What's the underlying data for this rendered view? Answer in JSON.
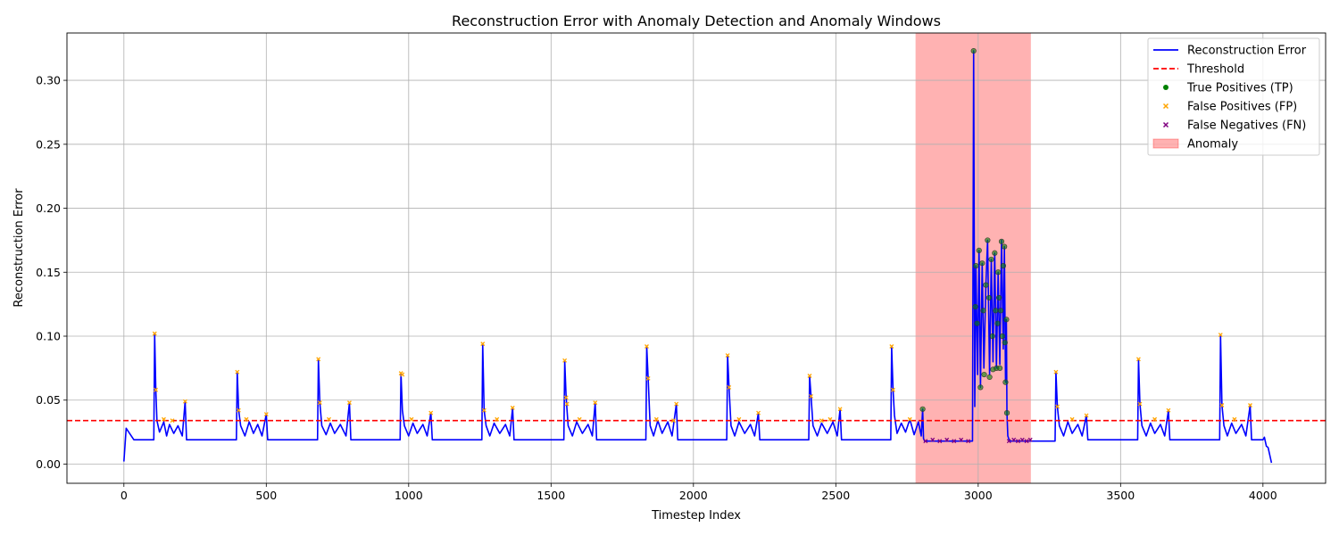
{
  "chart_data": {
    "type": "line",
    "title": "Reconstruction Error with Anomaly Detection and Anomaly Windows",
    "xlabel": "Timestep Index",
    "ylabel": "Reconstruction Error",
    "xlim": [
      -200,
      4220
    ],
    "ylim": [
      -0.015,
      0.337
    ],
    "x_ticks": [
      0,
      500,
      1000,
      1500,
      2000,
      2500,
      3000,
      3500,
      4000
    ],
    "y_ticks": [
      0.0,
      0.05,
      0.1,
      0.15,
      0.2,
      0.25,
      0.3
    ],
    "y_tick_labels": [
      "0.00",
      "0.05",
      "0.10",
      "0.15",
      "0.20",
      "0.25",
      "0.30"
    ],
    "grid": true,
    "legend_position": "upper-right",
    "threshold": 0.034,
    "anomaly_window": [
      2780,
      3185
    ],
    "baseline": 0.019,
    "series": [
      {
        "name": "Reconstruction Error",
        "color": "#0000ff",
        "points": [
          [
            0,
            0.002
          ],
          [
            8,
            0.028
          ],
          [
            20,
            0.024
          ],
          [
            35,
            0.019
          ],
          [
            105,
            0.019
          ],
          [
            108,
            0.102
          ],
          [
            112,
            0.058
          ],
          [
            116,
            0.034
          ],
          [
            125,
            0.025
          ],
          [
            140,
            0.033
          ],
          [
            150,
            0.022
          ],
          [
            160,
            0.031
          ],
          [
            175,
            0.024
          ],
          [
            190,
            0.03
          ],
          [
            205,
            0.022
          ],
          [
            215,
            0.049
          ],
          [
            220,
            0.019
          ],
          [
            395,
            0.019
          ],
          [
            398,
            0.072
          ],
          [
            403,
            0.042
          ],
          [
            410,
            0.03
          ],
          [
            425,
            0.022
          ],
          [
            440,
            0.033
          ],
          [
            455,
            0.024
          ],
          [
            470,
            0.031
          ],
          [
            485,
            0.022
          ],
          [
            500,
            0.039
          ],
          [
            505,
            0.019
          ],
          [
            680,
            0.019
          ],
          [
            683,
            0.082
          ],
          [
            688,
            0.048
          ],
          [
            695,
            0.03
          ],
          [
            710,
            0.023
          ],
          [
            725,
            0.032
          ],
          [
            740,
            0.024
          ],
          [
            760,
            0.031
          ],
          [
            780,
            0.022
          ],
          [
            792,
            0.048
          ],
          [
            797,
            0.019
          ],
          [
            970,
            0.019
          ],
          [
            973,
            0.071
          ],
          [
            978,
            0.042
          ],
          [
            985,
            0.03
          ],
          [
            1000,
            0.022
          ],
          [
            1015,
            0.032
          ],
          [
            1030,
            0.024
          ],
          [
            1050,
            0.031
          ],
          [
            1065,
            0.022
          ],
          [
            1078,
            0.04
          ],
          [
            1083,
            0.019
          ],
          [
            1257,
            0.019
          ],
          [
            1260,
            0.094
          ],
          [
            1265,
            0.042
          ],
          [
            1272,
            0.03
          ],
          [
            1285,
            0.022
          ],
          [
            1300,
            0.032
          ],
          [
            1320,
            0.024
          ],
          [
            1340,
            0.031
          ],
          [
            1355,
            0.022
          ],
          [
            1365,
            0.044
          ],
          [
            1370,
            0.019
          ],
          [
            1545,
            0.019
          ],
          [
            1548,
            0.081
          ],
          [
            1553,
            0.052
          ],
          [
            1560,
            0.03
          ],
          [
            1575,
            0.022
          ],
          [
            1590,
            0.033
          ],
          [
            1610,
            0.024
          ],
          [
            1630,
            0.031
          ],
          [
            1645,
            0.022
          ],
          [
            1655,
            0.048
          ],
          [
            1660,
            0.019
          ],
          [
            1833,
            0.019
          ],
          [
            1836,
            0.092
          ],
          [
            1841,
            0.067
          ],
          [
            1848,
            0.03
          ],
          [
            1860,
            0.022
          ],
          [
            1875,
            0.034
          ],
          [
            1890,
            0.024
          ],
          [
            1910,
            0.033
          ],
          [
            1925,
            0.022
          ],
          [
            1940,
            0.047
          ],
          [
            1945,
            0.019
          ],
          [
            2117,
            0.019
          ],
          [
            2120,
            0.085
          ],
          [
            2125,
            0.06
          ],
          [
            2132,
            0.03
          ],
          [
            2145,
            0.022
          ],
          [
            2160,
            0.033
          ],
          [
            2180,
            0.024
          ],
          [
            2200,
            0.031
          ],
          [
            2215,
            0.022
          ],
          [
            2228,
            0.04
          ],
          [
            2233,
            0.019
          ],
          [
            2405,
            0.019
          ],
          [
            2408,
            0.069
          ],
          [
            2413,
            0.053
          ],
          [
            2420,
            0.03
          ],
          [
            2435,
            0.022
          ],
          [
            2450,
            0.032
          ],
          [
            2470,
            0.024
          ],
          [
            2490,
            0.033
          ],
          [
            2505,
            0.022
          ],
          [
            2515,
            0.043
          ],
          [
            2520,
            0.019
          ],
          [
            2693,
            0.019
          ],
          [
            2696,
            0.092
          ],
          [
            2701,
            0.058
          ],
          [
            2706,
            0.038
          ],
          [
            2715,
            0.024
          ],
          [
            2730,
            0.032
          ],
          [
            2745,
            0.025
          ],
          [
            2760,
            0.035
          ],
          [
            2775,
            0.023
          ],
          [
            2790,
            0.033
          ],
          [
            2800,
            0.022
          ],
          [
            2805,
            0.043
          ],
          [
            2808,
            0.02
          ],
          [
            2812,
            0.018
          ],
          [
            2980,
            0.018
          ],
          [
            2984,
            0.323
          ],
          [
            2988,
            0.045
          ],
          [
            2992,
            0.155
          ],
          [
            2998,
            0.07
          ],
          [
            3003,
            0.167
          ],
          [
            3008,
            0.06
          ],
          [
            3014,
            0.157
          ],
          [
            3020,
            0.075
          ],
          [
            3027,
            0.14
          ],
          [
            3033,
            0.175
          ],
          [
            3040,
            0.07
          ],
          [
            3046,
            0.16
          ],
          [
            3052,
            0.08
          ],
          [
            3058,
            0.165
          ],
          [
            3064,
            0.075
          ],
          [
            3070,
            0.15
          ],
          [
            3076,
            0.078
          ],
          [
            3082,
            0.175
          ],
          [
            3088,
            0.09
          ],
          [
            3092,
            0.17
          ],
          [
            3096,
            0.064
          ],
          [
            3099,
            0.113
          ],
          [
            3101,
            0.04
          ],
          [
            3104,
            0.022
          ],
          [
            3110,
            0.018
          ],
          [
            3270,
            0.018
          ],
          [
            3273,
            0.072
          ],
          [
            3278,
            0.045
          ],
          [
            3285,
            0.03
          ],
          [
            3300,
            0.022
          ],
          [
            3315,
            0.033
          ],
          [
            3330,
            0.024
          ],
          [
            3350,
            0.031
          ],
          [
            3365,
            0.022
          ],
          [
            3380,
            0.038
          ],
          [
            3385,
            0.019
          ],
          [
            3560,
            0.019
          ],
          [
            3563,
            0.082
          ],
          [
            3568,
            0.047
          ],
          [
            3575,
            0.03
          ],
          [
            3590,
            0.022
          ],
          [
            3605,
            0.032
          ],
          [
            3620,
            0.024
          ],
          [
            3640,
            0.031
          ],
          [
            3655,
            0.022
          ],
          [
            3668,
            0.042
          ],
          [
            3673,
            0.019
          ],
          [
            3848,
            0.019
          ],
          [
            3851,
            0.101
          ],
          [
            3856,
            0.046
          ],
          [
            3863,
            0.03
          ],
          [
            3875,
            0.022
          ],
          [
            3890,
            0.032
          ],
          [
            3905,
            0.024
          ],
          [
            3925,
            0.031
          ],
          [
            3940,
            0.022
          ],
          [
            3955,
            0.046
          ],
          [
            3960,
            0.019
          ],
          [
            4000,
            0.019
          ],
          [
            4005,
            0.021
          ],
          [
            4012,
            0.014
          ],
          [
            4018,
            0.013
          ],
          [
            4025,
            0.006
          ],
          [
            4030,
            0.001
          ]
        ]
      },
      {
        "name": "Threshold",
        "color": "#ff0000",
        "style": "dashed",
        "value": 0.034
      },
      {
        "name": "True Positives (TP)",
        "color": "#008000",
        "marker": "circle",
        "points": [
          [
            2805,
            0.043
          ],
          [
            2984,
            0.323
          ],
          [
            2990,
            0.123
          ],
          [
            2992,
            0.155
          ],
          [
            2996,
            0.11
          ],
          [
            3003,
            0.167
          ],
          [
            3008,
            0.06
          ],
          [
            3014,
            0.157
          ],
          [
            3018,
            0.12
          ],
          [
            3021,
            0.07
          ],
          [
            3027,
            0.14
          ],
          [
            3033,
            0.175
          ],
          [
            3038,
            0.13
          ],
          [
            3040,
            0.068
          ],
          [
            3046,
            0.16
          ],
          [
            3050,
            0.1
          ],
          [
            3052,
            0.074
          ],
          [
            3058,
            0.165
          ],
          [
            3061,
            0.12
          ],
          [
            3064,
            0.075
          ],
          [
            3068,
            0.11
          ],
          [
            3070,
            0.15
          ],
          [
            3073,
            0.13
          ],
          [
            3076,
            0.075
          ],
          [
            3079,
            0.12
          ],
          [
            3082,
            0.174
          ],
          [
            3085,
            0.1
          ],
          [
            3088,
            0.155
          ],
          [
            3092,
            0.17
          ],
          [
            3094,
            0.095
          ],
          [
            3096,
            0.064
          ],
          [
            3099,
            0.113
          ],
          [
            3101,
            0.04
          ]
        ]
      },
      {
        "name": "False Positives (FP)",
        "color": "#ffa500",
        "marker": "x",
        "points": [
          [
            108,
            0.102
          ],
          [
            112,
            0.058
          ],
          [
            140,
            0.035
          ],
          [
            170,
            0.034
          ],
          [
            215,
            0.049
          ],
          [
            398,
            0.072
          ],
          [
            403,
            0.042
          ],
          [
            430,
            0.035
          ],
          [
            500,
            0.039
          ],
          [
            683,
            0.082
          ],
          [
            688,
            0.048
          ],
          [
            720,
            0.035
          ],
          [
            792,
            0.048
          ],
          [
            973,
            0.071
          ],
          [
            978,
            0.07
          ],
          [
            1010,
            0.035
          ],
          [
            1078,
            0.04
          ],
          [
            1260,
            0.094
          ],
          [
            1265,
            0.042
          ],
          [
            1310,
            0.035
          ],
          [
            1365,
            0.044
          ],
          [
            1548,
            0.081
          ],
          [
            1553,
            0.052
          ],
          [
            1556,
            0.047
          ],
          [
            1600,
            0.035
          ],
          [
            1655,
            0.048
          ],
          [
            1836,
            0.092
          ],
          [
            1841,
            0.067
          ],
          [
            1870,
            0.035
          ],
          [
            1930,
            0.034
          ],
          [
            1940,
            0.047
          ],
          [
            2120,
            0.085
          ],
          [
            2125,
            0.06
          ],
          [
            2160,
            0.035
          ],
          [
            2228,
            0.04
          ],
          [
            2408,
            0.069
          ],
          [
            2413,
            0.053
          ],
          [
            2450,
            0.034
          ],
          [
            2480,
            0.035
          ],
          [
            2515,
            0.043
          ],
          [
            2696,
            0.092
          ],
          [
            2701,
            0.058
          ],
          [
            2760,
            0.035
          ],
          [
            3273,
            0.072
          ],
          [
            3278,
            0.045
          ],
          [
            3330,
            0.035
          ],
          [
            3380,
            0.038
          ],
          [
            3563,
            0.082
          ],
          [
            3568,
            0.047
          ],
          [
            3620,
            0.035
          ],
          [
            3668,
            0.042
          ],
          [
            3851,
            0.101
          ],
          [
            3856,
            0.046
          ],
          [
            3900,
            0.035
          ],
          [
            3955,
            0.046
          ]
        ]
      },
      {
        "name": "False Negatives (FN)",
        "color": "#800080",
        "marker": "x",
        "points": [
          [
            2815,
            0.018
          ],
          [
            2840,
            0.019
          ],
          [
            2865,
            0.018
          ],
          [
            2890,
            0.019
          ],
          [
            2915,
            0.018
          ],
          [
            2940,
            0.019
          ],
          [
            2965,
            0.018
          ],
          [
            3108,
            0.018
          ],
          [
            3125,
            0.019
          ],
          [
            3140,
            0.018
          ],
          [
            3155,
            0.019
          ],
          [
            3170,
            0.018
          ],
          [
            3183,
            0.019
          ]
        ]
      }
    ],
    "legend": [
      {
        "label": "Reconstruction Error",
        "type": "line",
        "color": "#0000ff"
      },
      {
        "label": "Threshold",
        "type": "dashed",
        "color": "#ff0000"
      },
      {
        "label": "True Positives (TP)",
        "type": "dot",
        "color": "#008000"
      },
      {
        "label": "False Positives (FP)",
        "type": "x",
        "color": "#ffa500"
      },
      {
        "label": "False Negatives (FN)",
        "type": "x",
        "color": "#800080"
      },
      {
        "label": "Anomaly",
        "type": "patch",
        "color": "#ff9999"
      }
    ]
  }
}
